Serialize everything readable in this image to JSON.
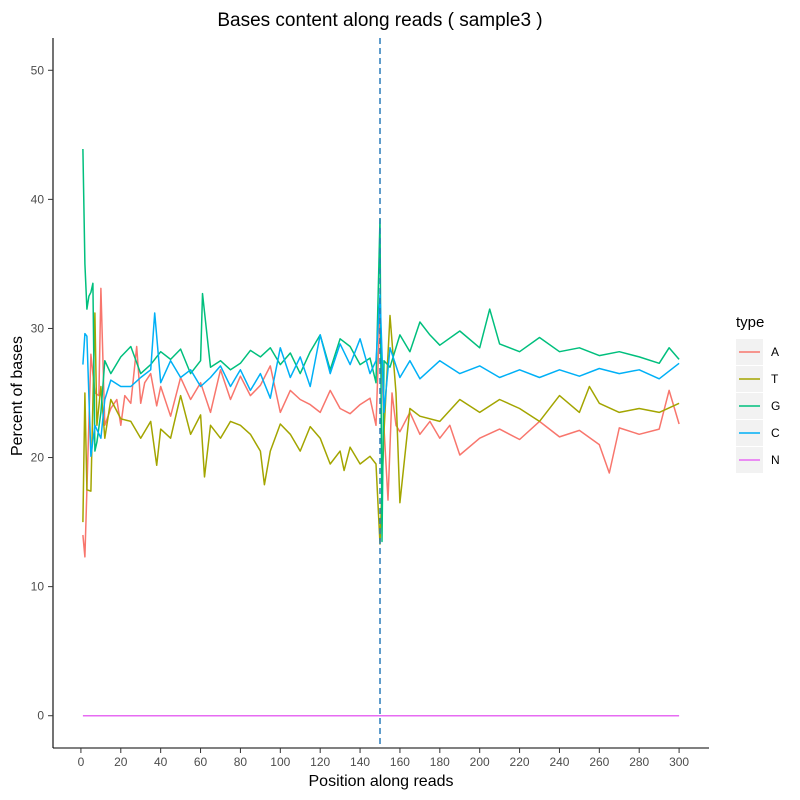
{
  "chart_data": {
    "type": "line",
    "title": "Bases content along reads ( sample3 )",
    "xlabel": "Position along reads",
    "ylabel": "Percent of bases",
    "xlim": [
      -14,
      315
    ],
    "ylim": [
      -2.5,
      52.5
    ],
    "xticks": [
      0,
      20,
      40,
      60,
      80,
      100,
      120,
      140,
      160,
      180,
      200,
      220,
      240,
      260,
      280,
      300
    ],
    "yticks": [
      0,
      10,
      20,
      30,
      40,
      50
    ],
    "grid": false,
    "legend": {
      "title": "type",
      "position": "right"
    },
    "vline": {
      "x": 150,
      "style": "dashed",
      "color": "#2b7bba"
    },
    "series": [
      {
        "name": "A",
        "color": "#F8766D",
        "x": [
          1,
          2,
          3,
          5,
          7,
          9,
          10,
          12,
          15,
          18,
          20,
          22,
          25,
          28,
          30,
          32,
          35,
          38,
          40,
          45,
          50,
          55,
          60,
          65,
          70,
          75,
          80,
          85,
          90,
          95,
          100,
          105,
          110,
          115,
          120,
          125,
          130,
          135,
          140,
          145,
          148,
          150,
          152,
          154,
          156,
          158,
          160,
          165,
          170,
          175,
          180,
          185,
          190,
          200,
          210,
          220,
          230,
          240,
          250,
          260,
          265,
          270,
          280,
          290,
          295,
          300
        ],
        "y": [
          14,
          12.3,
          17.5,
          28,
          25,
          24.8,
          33.1,
          22.5,
          23.8,
          24.5,
          22.5,
          24.8,
          24.2,
          28.6,
          24.2,
          25.8,
          26.5,
          24,
          25.5,
          23.2,
          26.2,
          24.5,
          25.8,
          23.5,
          26.8,
          24.5,
          26.3,
          24.8,
          25.6,
          27.1,
          23.5,
          25.2,
          24.5,
          24.1,
          23.5,
          25.2,
          23.8,
          23.4,
          24.1,
          24.6,
          22.5,
          31.5,
          22.3,
          16.7,
          25,
          22.5,
          22,
          23.5,
          21.8,
          22.8,
          21.5,
          22.5,
          20.2,
          21.5,
          22.2,
          21.4,
          22.8,
          21.6,
          22.1,
          21,
          18.8,
          22.3,
          21.8,
          22.2,
          25.2,
          22.6
        ]
      },
      {
        "name": "T",
        "color": "#A3A500",
        "x": [
          1,
          2,
          3,
          5,
          7,
          8,
          10,
          12,
          15,
          20,
          25,
          30,
          35,
          38,
          40,
          45,
          50,
          55,
          60,
          62,
          65,
          70,
          75,
          80,
          85,
          90,
          92,
          95,
          100,
          105,
          110,
          115,
          120,
          125,
          130,
          132,
          135,
          140,
          145,
          148,
          150,
          152,
          155,
          158,
          160,
          165,
          170,
          180,
          190,
          200,
          210,
          220,
          230,
          240,
          250,
          255,
          260,
          270,
          280,
          290,
          300
        ],
        "y": [
          15,
          25,
          17.5,
          17.4,
          31.2,
          22.5,
          25.5,
          21.5,
          24.5,
          23,
          22.8,
          21.5,
          22.8,
          19.4,
          22.2,
          21.5,
          24.8,
          21.8,
          23.3,
          18.5,
          22.5,
          21.5,
          22.8,
          22.5,
          21.8,
          20.5,
          17.9,
          20.5,
          22.6,
          21.8,
          20.5,
          22.4,
          21.5,
          19.5,
          20.5,
          19,
          20.8,
          19.5,
          20.1,
          19.5,
          13.3,
          22,
          31,
          25,
          16.5,
          23.8,
          23.2,
          22.8,
          24.5,
          23.5,
          24.5,
          23.8,
          22.8,
          24.8,
          23.5,
          25.5,
          24.2,
          23.5,
          23.8,
          23.5,
          24.2
        ]
      },
      {
        "name": "G",
        "color": "#00BF7D",
        "x": [
          1,
          2,
          3,
          4,
          5,
          6,
          7,
          8,
          10,
          12,
          15,
          20,
          25,
          30,
          35,
          40,
          45,
          50,
          55,
          60,
          61,
          65,
          70,
          75,
          80,
          85,
          90,
          95,
          100,
          105,
          110,
          115,
          120,
          125,
          130,
          135,
          140,
          145,
          148,
          150,
          151,
          152,
          155,
          160,
          165,
          170,
          175,
          180,
          190,
          200,
          205,
          210,
          220,
          230,
          240,
          250,
          260,
          270,
          280,
          290,
          295,
          300
        ],
        "y": [
          43.9,
          35,
          31.5,
          32.5,
          32.8,
          33.5,
          20.5,
          21.2,
          23.5,
          27.5,
          26.5,
          27.8,
          28.6,
          26.5,
          27.2,
          28.2,
          27.6,
          28.4,
          26.5,
          27.5,
          32.7,
          27,
          27.5,
          26.8,
          27.3,
          28.3,
          27.8,
          28.5,
          27.2,
          28.1,
          26.5,
          28.2,
          29.5,
          26.8,
          29.2,
          28.6,
          27.2,
          27.7,
          25.8,
          38.5,
          13.5,
          27.5,
          27,
          29.5,
          28.2,
          30.5,
          29.5,
          28.7,
          29.8,
          28.5,
          31.5,
          28.8,
          28.2,
          29.3,
          28.2,
          28.5,
          27.9,
          28.2,
          27.8,
          27.3,
          28.5,
          27.6
        ]
      },
      {
        "name": "C",
        "color": "#00B0F6",
        "x": [
          1,
          2,
          3,
          5,
          7,
          10,
          12,
          15,
          20,
          25,
          30,
          35,
          37,
          40,
          45,
          50,
          55,
          60,
          65,
          70,
          75,
          80,
          85,
          90,
          95,
          100,
          105,
          110,
          115,
          120,
          125,
          130,
          135,
          140,
          145,
          148,
          150,
          152,
          155,
          160,
          165,
          170,
          180,
          190,
          200,
          210,
          220,
          230,
          240,
          250,
          260,
          270,
          280,
          290,
          300
        ],
        "y": [
          27.2,
          29.6,
          29.4,
          20.1,
          22.5,
          21.5,
          24.5,
          26,
          25.5,
          25.5,
          26.2,
          26.8,
          31.2,
          25.8,
          27.5,
          26.2,
          26.8,
          25.5,
          26.2,
          27.1,
          25.5,
          26.8,
          25.2,
          26.5,
          24.6,
          28.5,
          26.2,
          27.8,
          25.5,
          29.5,
          26.5,
          28.8,
          27.2,
          29.2,
          26.5,
          27.5,
          32.6,
          23.5,
          28.5,
          26.2,
          27.5,
          26.1,
          27.5,
          26.5,
          27.1,
          26.2,
          26.8,
          26.2,
          26.8,
          26.3,
          26.9,
          26.5,
          26.8,
          26.1,
          27.3
        ]
      },
      {
        "name": "N",
        "color": "#E76BF3",
        "x": [
          1,
          300
        ],
        "y": [
          0,
          0
        ]
      }
    ]
  }
}
